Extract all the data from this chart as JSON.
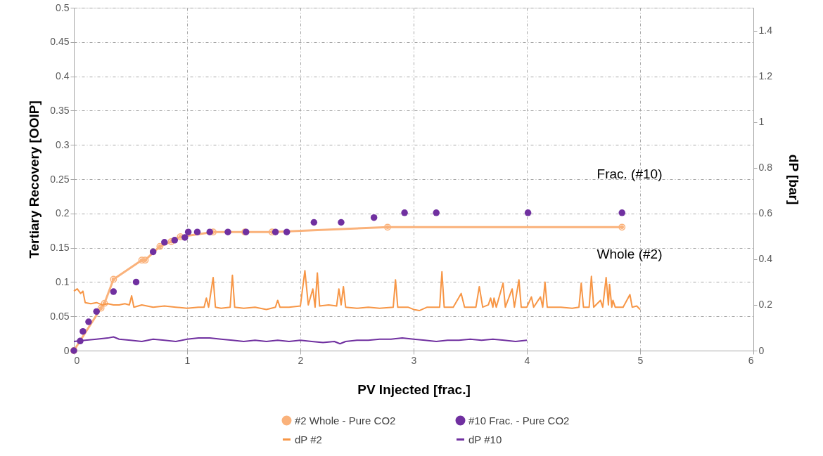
{
  "chart_data": {
    "type": "line",
    "xlabel": "PV Injected [frac.]",
    "ylabel": "Tertiary Recovery [OOIP]",
    "y2label": "dP [bar]",
    "xlim": [
      0,
      6
    ],
    "xticks": [
      0,
      1,
      2,
      3,
      4,
      5,
      6
    ],
    "ylim": [
      0,
      0.5
    ],
    "yticks": [
      0,
      0.05,
      0.1,
      0.15,
      0.2,
      0.25,
      0.3,
      0.35,
      0.4,
      0.45,
      0.5
    ],
    "y2lim": [
      0,
      1.5
    ],
    "y2ticks": [
      0,
      0.2,
      0.4,
      0.6,
      0.8,
      1,
      1.2,
      1.4
    ],
    "grid": true,
    "legend": "bottom",
    "annotations": [
      "Frac. (#10)",
      "Whole (#2)"
    ],
    "series": [
      {
        "name": "#2 Whole - Pure CO2",
        "marker": "circle",
        "color": "#fab27b",
        "x": [
          0,
          0.24,
          0.27,
          0.35,
          0.6,
          0.63,
          0.76,
          0.86,
          0.94,
          1.23,
          1.51,
          1.75,
          2.77,
          4.84
        ],
        "values": [
          0,
          0.062,
          0.069,
          0.104,
          0.132,
          0.132,
          0.152,
          0.159,
          0.166,
          0.173,
          0.173,
          0.173,
          0.18,
          0.18
        ]
      },
      {
        "name": "#10 Frac. - Pure CO2",
        "type": "scatter",
        "marker": "circle",
        "color": "#7030a0",
        "x": [
          0,
          0.056,
          0.08,
          0.13,
          0.2,
          0.35,
          0.55,
          0.7,
          0.8,
          0.89,
          0.98,
          1.01,
          1.09,
          1.2,
          1.36,
          1.52,
          1.78,
          1.88,
          2.12,
          2.36,
          2.65,
          2.92,
          3.2,
          4.01,
          4.84
        ],
        "values": [
          0,
          0.014,
          0.028,
          0.042,
          0.057,
          0.086,
          0.1,
          0.144,
          0.158,
          0.161,
          0.165,
          0.173,
          0.173,
          0.173,
          0.173,
          0.173,
          0.173,
          0.173,
          0.187,
          0.187,
          0.194,
          0.201,
          0.201,
          0.201,
          0.201
        ]
      },
      {
        "name": "dP #2",
        "axis": "y2",
        "color": "#f79646",
        "x": [
          0,
          0.03,
          0.06,
          0.08,
          0.1,
          0.15,
          0.2,
          0.25,
          0.3,
          0.35,
          0.4,
          0.45,
          0.49,
          0.51,
          0.53,
          0.6,
          0.7,
          0.8,
          0.9,
          1.0,
          1.1,
          1.15,
          1.17,
          1.19,
          1.23,
          1.25,
          1.3,
          1.38,
          1.4,
          1.42,
          1.5,
          1.6,
          1.7,
          1.78,
          1.8,
          1.82,
          1.9,
          2.0,
          2.04,
          2.07,
          2.11,
          2.13,
          2.15,
          2.17,
          2.25,
          2.32,
          2.34,
          2.36,
          2.38,
          2.4,
          2.5,
          2.6,
          2.7,
          2.82,
          2.84,
          2.86,
          2.95,
          3.0,
          3.05,
          3.12,
          3.2,
          3.23,
          3.25,
          3.27,
          3.35,
          3.42,
          3.45,
          3.55,
          3.58,
          3.61,
          3.66,
          3.68,
          3.7,
          3.71,
          3.73,
          3.79,
          3.81,
          3.87,
          3.89,
          3.93,
          3.95,
          4.0,
          4.04,
          4.06,
          4.12,
          4.14,
          4.16,
          4.18,
          4.3,
          4.4,
          4.46,
          4.48,
          4.5,
          4.55,
          4.57,
          4.59,
          4.65,
          4.67,
          4.7,
          4.72,
          4.73,
          4.75,
          4.76,
          4.78,
          4.85,
          4.91,
          4.93,
          4.97,
          5.0
        ],
        "values": [
          0.26,
          0.27,
          0.25,
          0.26,
          0.21,
          0.205,
          0.21,
          0.2,
          0.205,
          0.2,
          0.2,
          0.205,
          0.2,
          0.24,
          0.19,
          0.2,
          0.19,
          0.195,
          0.19,
          0.185,
          0.19,
          0.19,
          0.23,
          0.19,
          0.32,
          0.19,
          0.185,
          0.19,
          0.33,
          0.19,
          0.185,
          0.19,
          0.18,
          0.19,
          0.22,
          0.19,
          0.19,
          0.195,
          0.35,
          0.2,
          0.27,
          0.19,
          0.34,
          0.195,
          0.2,
          0.195,
          0.27,
          0.2,
          0.28,
          0.19,
          0.185,
          0.19,
          0.185,
          0.19,
          0.31,
          0.19,
          0.19,
          0.18,
          0.175,
          0.19,
          0.19,
          0.19,
          0.345,
          0.19,
          0.19,
          0.25,
          0.19,
          0.19,
          0.28,
          0.19,
          0.2,
          0.23,
          0.19,
          0.23,
          0.19,
          0.295,
          0.19,
          0.27,
          0.19,
          0.31,
          0.19,
          0.19,
          0.235,
          0.19,
          0.235,
          0.19,
          0.3,
          0.19,
          0.19,
          0.185,
          0.19,
          0.295,
          0.19,
          0.19,
          0.325,
          0.19,
          0.22,
          0.19,
          0.32,
          0.2,
          0.29,
          0.19,
          0.22,
          0.19,
          0.19,
          0.245,
          0.19,
          0.195,
          0.18
        ]
      },
      {
        "name": "dP #10",
        "axis": "y2",
        "color": "#7030a0",
        "x": [
          0,
          0.1,
          0.2,
          0.3,
          0.35,
          0.4,
          0.5,
          0.6,
          0.7,
          0.8,
          0.9,
          1.0,
          1.1,
          1.2,
          1.3,
          1.4,
          1.5,
          1.6,
          1.7,
          1.8,
          1.9,
          2.0,
          2.1,
          2.2,
          2.3,
          2.35,
          2.4,
          2.5,
          2.6,
          2.7,
          2.8,
          2.9,
          3.0,
          3.1,
          3.2,
          3.3,
          3.4,
          3.5,
          3.6,
          3.7,
          3.8,
          3.9,
          4.0
        ],
        "values": [
          0.04,
          0.045,
          0.05,
          0.055,
          0.06,
          0.05,
          0.045,
          0.04,
          0.05,
          0.045,
          0.04,
          0.05,
          0.055,
          0.055,
          0.05,
          0.045,
          0.04,
          0.045,
          0.04,
          0.045,
          0.04,
          0.045,
          0.04,
          0.035,
          0.04,
          0.03,
          0.04,
          0.045,
          0.045,
          0.05,
          0.05,
          0.055,
          0.05,
          0.045,
          0.04,
          0.045,
          0.045,
          0.05,
          0.045,
          0.05,
          0.045,
          0.04,
          0.045
        ]
      }
    ]
  }
}
